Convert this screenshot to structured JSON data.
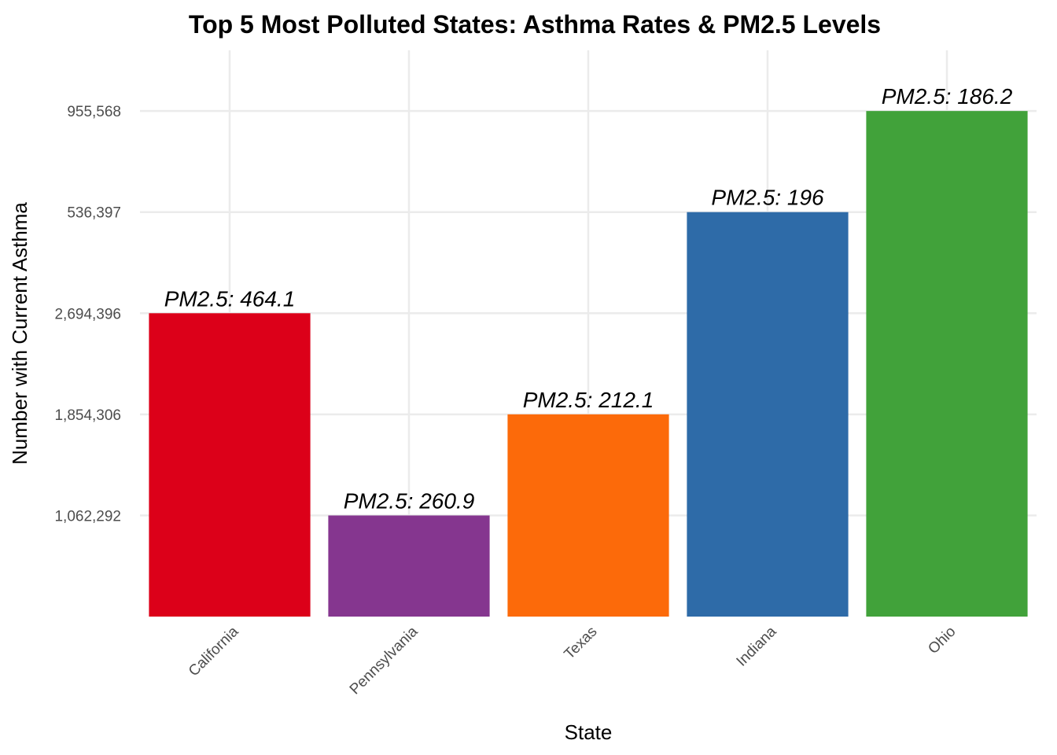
{
  "chart_data": {
    "type": "bar",
    "title": "Top 5 Most Polluted States: Asthma Rates & PM2.5 Levels",
    "xlabel": "State",
    "ylabel": "Number with Current Asthma",
    "categories": [
      "California",
      "Pennsylvania",
      "Texas",
      "Indiana",
      "Ohio"
    ],
    "y_tick_labels": [
      "1,062,292",
      "1,854,306",
      "2,694,396",
      "536,397",
      "955,568"
    ],
    "values": [
      2694396,
      1062292,
      1854306,
      536397,
      955568
    ],
    "bar_rank": [
      3,
      1,
      2,
      4,
      5
    ],
    "bar_labels": [
      "PM2.5: 464.1",
      "PM2.5: 260.9",
      "PM2.5: 212.1",
      "PM2.5: 196",
      "PM2.5: 186.2"
    ],
    "colors": [
      "#DC0019",
      "#85368F",
      "#FC6A0A",
      "#2E6BA8",
      "#41A23A"
    ],
    "grid": true,
    "legend": "none"
  }
}
